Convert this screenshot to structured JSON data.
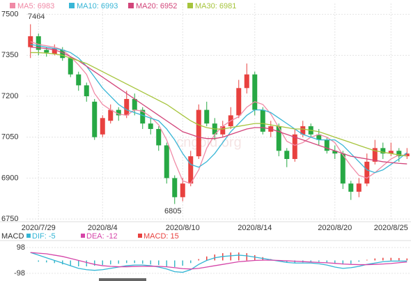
{
  "chart_data": {
    "type": "candlestick",
    "up_color": "#e8413f",
    "down_color": "#27a844",
    "categories": [
      null,
      "2020/7/29",
      null,
      null,
      null,
      null,
      null,
      null,
      null,
      "2020/8/4",
      null,
      null,
      null,
      null,
      null,
      null,
      null,
      null,
      null,
      "2020/8/10",
      null,
      null,
      null,
      null,
      null,
      null,
      null,
      null,
      "2020/8/14",
      null,
      null,
      null,
      null,
      null,
      null,
      null,
      null,
      null,
      "2020/8/20",
      null,
      null,
      null,
      null,
      null,
      null,
      "2020/8/25",
      null,
      null
    ],
    "open": [
      7380,
      7420,
      7370,
      7355,
      7370,
      7340,
      7280,
      7240,
      7180,
      7060,
      7110,
      7150,
      7130,
      7190,
      7150,
      7100,
      7080,
      7020,
      6900,
      6830,
      6880,
      6980,
      7150,
      7100,
      7060,
      7090,
      7130,
      7230,
      7280,
      7150,
      7070,
      7090,
      7000,
      6970,
      7060,
      7090,
      7060,
      7040,
      7000,
      6990,
      6880,
      6850,
      6880,
      6960,
      7010,
      6990,
      7000,
      6980
    ],
    "high": [
      7464,
      7430,
      7380,
      7390,
      7380,
      7345,
      7290,
      7250,
      7190,
      7130,
      7170,
      7160,
      7220,
      7210,
      7160,
      7120,
      7090,
      7030,
      6910,
      6900,
      7000,
      7170,
      7180,
      7120,
      7110,
      7160,
      7260,
      7320,
      7290,
      7160,
      7110,
      7100,
      7010,
      7080,
      7110,
      7100,
      7080,
      7050,
      7020,
      7000,
      6890,
      6900,
      6990,
      7040,
      7030,
      7030,
      7010,
      7010
    ],
    "low": [
      7340,
      7350,
      7345,
      7350,
      7330,
      7270,
      7220,
      7180,
      7040,
      7050,
      7100,
      7110,
      7120,
      7130,
      7080,
      7060,
      7000,
      6880,
      6805,
      6815,
      6870,
      6970,
      7090,
      7040,
      7050,
      7080,
      7120,
      7210,
      7130,
      7060,
      7050,
      6980,
      6940,
      6960,
      7050,
      7050,
      7020,
      6990,
      6970,
      6860,
      6820,
      6830,
      6870,
      6950,
      6970,
      6980,
      6960,
      6970
    ],
    "close": [
      7420,
      7370,
      7360,
      7375,
      7340,
      7280,
      7240,
      7200,
      7050,
      7120,
      7150,
      7130,
      7190,
      7150,
      7100,
      7080,
      7020,
      6900,
      6830,
      6880,
      6980,
      7150,
      7100,
      7060,
      7090,
      7130,
      7230,
      7280,
      7150,
      7070,
      7090,
      7000,
      6970,
      7060,
      7090,
      7060,
      7040,
      7000,
      6990,
      6880,
      6850,
      6880,
      6960,
      7010,
      6990,
      7000,
      6980,
      6990
    ],
    "series": [
      {
        "name": "MA5: 6983",
        "color": "#f08aa6",
        "values": [
          7400,
          7390,
          7385,
          7380,
          7370,
          7345,
          7315,
          7280,
          7210,
          7170,
          7150,
          7135,
          7130,
          7150,
          7145,
          7125,
          7095,
          7040,
          6960,
          6890,
          6880,
          6930,
          7010,
          7060,
          7090,
          7110,
          7125,
          7160,
          7180,
          7170,
          7135,
          7085,
          7035,
          7020,
          7030,
          7050,
          7060,
          7050,
          7030,
          6985,
          6945,
          6910,
          6900,
          6920,
          6945,
          6970,
          6985,
          6983
        ]
      },
      {
        "name": "MA10: 6993",
        "color": "#38b6d6",
        "values": [
          7390,
          7385,
          7380,
          7375,
          7370,
          7360,
          7340,
          7310,
          7270,
          7230,
          7200,
          7170,
          7150,
          7140,
          7130,
          7120,
          7110,
          7080,
          7040,
          6990,
          6950,
          6940,
          6960,
          6990,
          7030,
          7070,
          7100,
          7130,
          7150,
          7150,
          7140,
          7120,
          7100,
          7080,
          7060,
          7050,
          7040,
          7040,
          7040,
          7020,
          6990,
          6960,
          6930,
          6920,
          6930,
          6950,
          6970,
          6993
        ]
      },
      {
        "name": "MA20: 6952",
        "color": "#d2457a",
        "values": [
          7380,
          7378,
          7375,
          7370,
          7360,
          7345,
          7330,
          7310,
          7290,
          7270,
          7250,
          7230,
          7210,
          7190,
          7170,
          7150,
          7130,
          7110,
          7090,
          7070,
          7060,
          7050,
          7045,
          7045,
          7050,
          7060,
          7070,
          7080,
          7085,
          7085,
          7080,
          7070,
          7060,
          7050,
          7040,
          7030,
          7020,
          7010,
          7000,
          6990,
          6980,
          6975,
          6970,
          6965,
          6960,
          6957,
          6954,
          6952
        ]
      },
      {
        "name": "MA30: 6981",
        "color": "#a6c43c",
        "values": [
          7360,
          7360,
          7358,
          7355,
          7350,
          7340,
          7330,
          7320,
          7305,
          7290,
          7275,
          7260,
          7245,
          7230,
          7215,
          7200,
          7185,
          7170,
          7150,
          7130,
          7110,
          7095,
          7085,
          7080,
          7080,
          7085,
          7090,
          7095,
          7100,
          7100,
          7095,
          7090,
          7085,
          7080,
          7080,
          7075,
          7070,
          7060,
          7050,
          7040,
          7030,
          7020,
          7010,
          7000,
          6995,
          6990,
          6985,
          6981
        ]
      }
    ],
    "ylim": [
      6740,
      7540
    ],
    "yticks": [
      6750,
      6900,
      7050,
      7200,
      7350,
      7500
    ],
    "grid": true,
    "annotations": [
      "7464",
      "6805"
    ],
    "watermark": "cngold.org",
    "macd": {
      "title": "MACD",
      "ylim": [
        -140,
        140
      ],
      "yticks": [
        -98,
        98
      ],
      "up_color": "#e8413f",
      "down_color": "#3cb8c8",
      "histogram": {
        "name": "MACD: 15",
        "color": "#e8413f",
        "values": [
          0,
          -10,
          -15,
          -20,
          -30,
          -40,
          -45,
          -45,
          -40,
          -35,
          -30,
          -25,
          -20,
          -20,
          -25,
          -30,
          -35,
          -45,
          -50,
          -40,
          -20,
          10,
          30,
          45,
          55,
          60,
          60,
          55,
          40,
          25,
          10,
          -5,
          -15,
          -20,
          -15,
          -10,
          -10,
          -15,
          -25,
          -30,
          -25,
          -10,
          5,
          15,
          20,
          20,
          18,
          15
        ]
      },
      "series": [
        {
          "name": "DIF: -5",
          "color": "#33b5d5",
          "values": [
            60,
            40,
            20,
            0,
            -20,
            -40,
            -60,
            -70,
            -75,
            -70,
            -60,
            -50,
            -40,
            -35,
            -35,
            -40,
            -50,
            -65,
            -85,
            -90,
            -70,
            -30,
            0,
            20,
            30,
            35,
            40,
            35,
            25,
            15,
            5,
            -5,
            -15,
            -20,
            -20,
            -20,
            -25,
            -35,
            -50,
            -60,
            -55,
            -45,
            -30,
            -20,
            -10,
            -5,
            -5,
            -5
          ]
        },
        {
          "name": "DEA: -12",
          "color": "#d545a8",
          "values": [
            60,
            55,
            50,
            40,
            30,
            15,
            0,
            -15,
            -30,
            -40,
            -45,
            -48,
            -48,
            -46,
            -45,
            -44,
            -45,
            -48,
            -55,
            -62,
            -65,
            -60,
            -50,
            -40,
            -30,
            -20,
            -10,
            -5,
            0,
            2,
            2,
            0,
            -3,
            -6,
            -9,
            -12,
            -15,
            -18,
            -22,
            -27,
            -30,
            -32,
            -32,
            -30,
            -27,
            -23,
            -17,
            -12
          ]
        }
      ]
    }
  }
}
